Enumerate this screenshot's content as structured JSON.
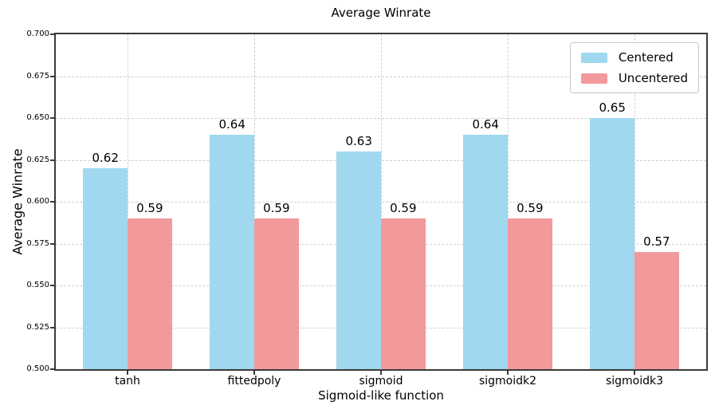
{
  "chart_data": {
    "type": "bar",
    "title": "Average Winrate",
    "xlabel": "Sigmoid-like function",
    "ylabel": "Average Winrate",
    "categories": [
      "tanh",
      "fittedpoly",
      "sigmoid",
      "sigmoidk2",
      "sigmoidk3"
    ],
    "series": [
      {
        "name": "Centered",
        "color": "#A0D8EF",
        "values": [
          0.62,
          0.64,
          0.63,
          0.64,
          0.65
        ],
        "labels": [
          "0.62",
          "0.64",
          "0.63",
          "0.64",
          "0.65"
        ]
      },
      {
        "name": "Uncentered",
        "color": "#F2999C",
        "values": [
          0.59,
          0.59,
          0.59,
          0.59,
          0.57
        ],
        "labels": [
          "0.59",
          "0.59",
          "0.59",
          "0.59",
          "0.57"
        ]
      }
    ],
    "ylim": [
      0.5,
      0.7
    ],
    "yticks": [
      0.5,
      0.525,
      0.55,
      0.575,
      0.6,
      0.625,
      0.65,
      0.675,
      0.7
    ],
    "ytick_labels": [
      "0.500",
      "0.525",
      "0.550",
      "0.575",
      "0.600",
      "0.625",
      "0.650",
      "0.675",
      "0.700"
    ],
    "grid": {
      "horizontal": true,
      "vertical": true,
      "line_style": "dashed",
      "color": "#cfcfcf"
    },
    "legend": {
      "position": "upper right",
      "entries": [
        "Centered",
        "Uncentered"
      ]
    },
    "spine_color": "#3a3a3a",
    "background": "#ffffff"
  }
}
